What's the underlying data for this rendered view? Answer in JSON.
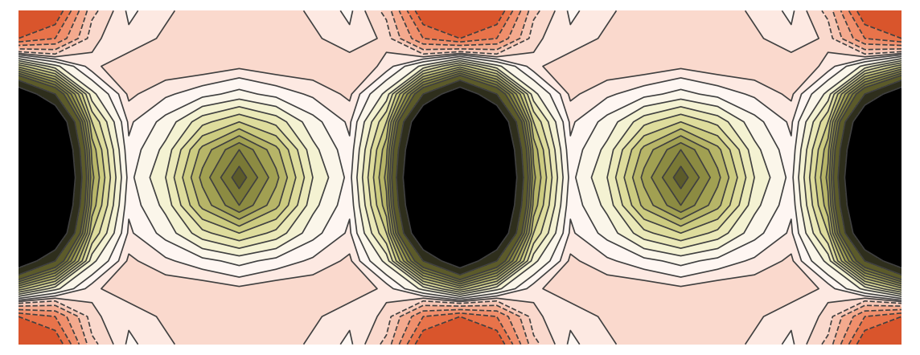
{
  "chart_data": {
    "type": "contour",
    "tick_labels": false,
    "cells": [
      [
        -3,
        -2.5,
        -0.2,
        0.4,
        0.2,
        0,
        0,
        0,
        0.2,
        0.4,
        -0.2,
        -2.5,
        -3,
        -2.5,
        -0.2,
        0.4,
        0.2,
        0,
        0,
        0,
        0.2,
        0.4,
        -0.2,
        -2.5,
        -3
      ],
      [
        -2,
        -1.5,
        0.1,
        0.3,
        0.1,
        0,
        0,
        0,
        0.1,
        0.3,
        0.1,
        -1.5,
        -2,
        -1.5,
        0.1,
        0.3,
        0.1,
        0,
        0,
        0,
        0.1,
        0.3,
        0.1,
        -1.5,
        -2
      ],
      [
        2,
        1.0,
        0.2,
        0,
        0,
        0,
        0.1,
        0,
        0,
        0,
        0.2,
        1.0,
        2,
        1.0,
        0.2,
        0,
        0,
        0,
        0.1,
        0,
        0,
        0,
        0.2,
        1.0,
        2
      ],
      [
        6,
        4,
        1.0,
        0.1,
        0.3,
        0.5,
        0.7,
        0.5,
        0.3,
        0.1,
        1.0,
        4,
        6,
        4,
        1.0,
        0.1,
        0.3,
        0.5,
        0.7,
        0.5,
        0.3,
        0.1,
        1.0,
        4,
        6
      ],
      [
        9,
        6.5,
        1.8,
        0.3,
        0.7,
        1.4,
        1.8,
        1.4,
        0.7,
        0.3,
        1.8,
        6.5,
        9,
        6.5,
        1.8,
        0.3,
        0.7,
        1.4,
        1.8,
        1.4,
        0.7,
        0.3,
        1.8,
        6.5,
        9
      ],
      [
        10,
        7.5,
        2.3,
        0.4,
        1.0,
        2.2,
        3.0,
        2.2,
        1.0,
        0.4,
        2.3,
        7.5,
        10,
        7.5,
        2.3,
        0.4,
        1.0,
        2.2,
        3.0,
        2.2,
        1.0,
        0.4,
        2.3,
        7.5,
        10
      ],
      [
        10,
        8,
        2.5,
        0.5,
        1.2,
        2.5,
        3.5,
        2.5,
        1.2,
        0.5,
        2.5,
        8,
        10,
        8,
        2.5,
        0.5,
        1.2,
        2.5,
        3.5,
        2.5,
        1.2,
        0.5,
        2.5,
        8,
        10
      ],
      [
        10,
        7.5,
        2.3,
        0.4,
        1.0,
        2.2,
        3.0,
        2.2,
        1.0,
        0.4,
        2.3,
        7.5,
        10,
        7.5,
        2.3,
        0.4,
        1.0,
        2.2,
        3.0,
        2.2,
        1.0,
        0.4,
        2.3,
        7.5,
        10
      ],
      [
        9,
        6.5,
        1.8,
        0.3,
        0.7,
        1.4,
        1.8,
        1.4,
        0.7,
        0.3,
        1.8,
        6.5,
        9,
        6.5,
        1.8,
        0.3,
        0.7,
        1.4,
        1.8,
        1.4,
        0.7,
        0.3,
        1.8,
        6.5,
        9
      ],
      [
        6,
        4,
        1.0,
        0.1,
        0.3,
        0.5,
        0.7,
        0.5,
        0.3,
        0.1,
        1.0,
        4,
        6,
        4,
        1.0,
        0.1,
        0.3,
        0.5,
        0.7,
        0.5,
        0.3,
        0.1,
        1.0,
        4,
        6
      ],
      [
        2,
        1.0,
        0.2,
        0,
        0,
        0,
        0.1,
        0,
        0,
        0,
        0.2,
        1.0,
        2,
        1.0,
        0.2,
        0,
        0,
        0,
        0.1,
        0,
        0,
        0,
        0.2,
        1.0,
        2
      ],
      [
        -2,
        -1.5,
        0.1,
        0.3,
        0.1,
        0,
        0,
        0,
        0.1,
        0.3,
        0.1,
        -1.5,
        -2,
        -1.5,
        0.1,
        0.3,
        0.1,
        0,
        0,
        0,
        0.1,
        0.3,
        0.1,
        -1.5,
        -2
      ],
      [
        -3,
        -2.5,
        -0.2,
        0.4,
        0.2,
        0,
        0,
        0,
        0.2,
        0.4,
        -0.2,
        -2.5,
        -3,
        -2.5,
        -0.2,
        0.4,
        0.2,
        0,
        0,
        0,
        0.2,
        0.4,
        -0.2,
        -2.5,
        -3
      ]
    ],
    "levels": [
      -4,
      -3,
      -2,
      -1.5,
      -1,
      -0.5,
      -0.1,
      0.15,
      0.35,
      0.6,
      0.9,
      1.2,
      1.5,
      1.8,
      2.1,
      2.4,
      2.7,
      3.0,
      3.3,
      4,
      5,
      11
    ],
    "colors": [
      "#c8401e",
      "#d9552c",
      "#e8734a",
      "#f08f6c",
      "#f4aa8e",
      "#f7c6b4",
      "#fad9cd",
      "#fde9e2",
      "#fef6f2",
      "#fbf6ea",
      "#f4f2d2",
      "#ebe9b8",
      "#dedc9c",
      "#cccb80",
      "#b7b568",
      "#a1a052",
      "#8c8b42",
      "#7a7936",
      "#5c5b2a",
      "#2e2e1c",
      "#000000"
    ]
  }
}
